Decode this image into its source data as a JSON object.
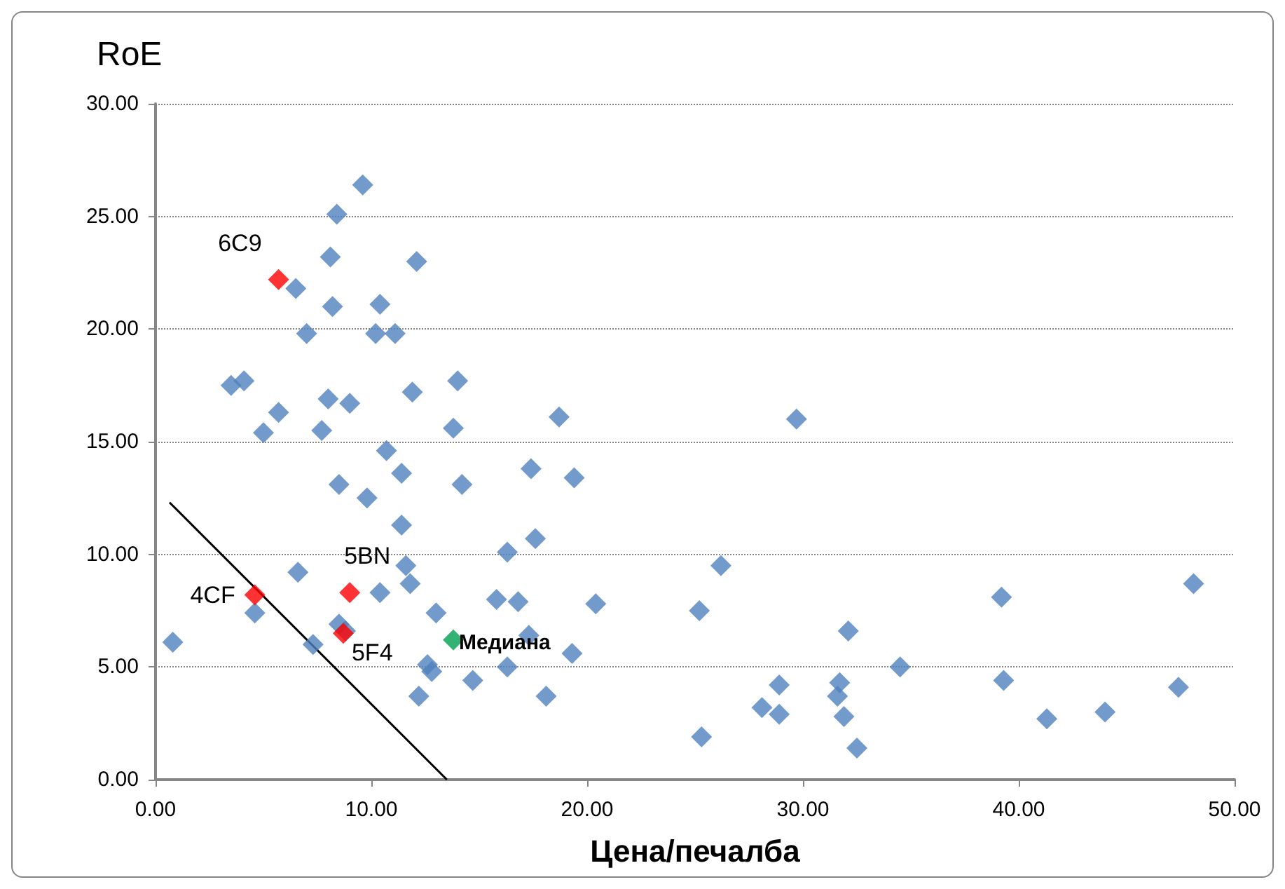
{
  "chart_data": {
    "type": "scatter",
    "xlabel": "Цена/печалба",
    "ylabel": "RoE",
    "xlim": [
      0,
      50
    ],
    "ylim": [
      0,
      30
    ],
    "xticks": [
      {
        "value": 0,
        "label": "0.00"
      },
      {
        "value": 10,
        "label": "10.00"
      },
      {
        "value": 20,
        "label": "20.00"
      },
      {
        "value": 30,
        "label": "30.00"
      },
      {
        "value": 40,
        "label": "40.00"
      },
      {
        "value": 50,
        "label": "50.00"
      }
    ],
    "yticks": [
      {
        "value": 0,
        "label": "0.00"
      },
      {
        "value": 5,
        "label": "5.00"
      },
      {
        "value": 10,
        "label": "10.00"
      },
      {
        "value": 15,
        "label": "15.00"
      },
      {
        "value": 20,
        "label": "20.00"
      },
      {
        "value": 25,
        "label": "25.00"
      },
      {
        "value": 30,
        "label": "30.00"
      }
    ],
    "grid": "y",
    "marker": "diamond",
    "series": [
      {
        "color": "#4f81bd",
        "x": [
          0.8,
          3.5,
          4.1,
          4.6,
          5.0,
          5.7,
          6.5,
          6.6,
          7.0,
          7.3,
          7.7,
          8.0,
          8.1,
          8.2,
          8.4,
          8.5,
          8.5,
          8.8,
          9.0,
          9.6,
          9.8,
          10.2,
          10.4,
          10.4,
          10.7,
          11.1,
          11.4,
          11.4,
          11.6,
          11.8,
          11.9,
          12.1,
          12.2,
          12.6,
          12.8,
          13.0,
          13.8,
          14.0,
          14.2,
          14.7,
          15.8,
          16.3,
          16.3,
          16.8,
          17.3,
          17.4,
          17.6,
          18.1,
          18.7,
          19.3,
          19.4,
          20.4,
          25.3,
          25.2,
          26.2,
          28.1,
          28.9,
          28.9,
          29.7,
          31.6,
          31.7,
          31.9,
          32.1,
          32.5,
          34.5,
          39.2,
          39.3,
          41.3,
          44.0,
          47.4,
          48.1
        ],
        "values": [
          6.1,
          17.5,
          17.7,
          7.4,
          15.4,
          16.3,
          21.8,
          9.2,
          19.8,
          6.0,
          15.5,
          16.9,
          23.2,
          21.0,
          25.1,
          13.1,
          6.9,
          6.6,
          16.7,
          26.4,
          12.5,
          19.8,
          21.1,
          8.3,
          14.6,
          19.8,
          13.6,
          11.3,
          9.5,
          8.7,
          17.2,
          23.0,
          3.7,
          5.1,
          4.8,
          7.4,
          15.6,
          17.7,
          13.1,
          4.4,
          8.0,
          10.1,
          5.0,
          7.9,
          6.4,
          13.8,
          10.7,
          3.7,
          16.1,
          5.6,
          13.4,
          7.8,
          1.9,
          7.5,
          9.5,
          3.2,
          4.2,
          2.9,
          16.0,
          3.7,
          4.3,
          2.8,
          6.6,
          1.4,
          5.0,
          8.1,
          4.4,
          2.7,
          3.0,
          4.1,
          8.7
        ]
      },
      {
        "color": "#ff0000",
        "x": [
          5.7,
          4.6,
          9.0,
          8.7
        ],
        "values": [
          22.2,
          8.2,
          8.3,
          6.5
        ]
      },
      {
        "color": "#00a050",
        "x": [
          13.8
        ],
        "values": [
          6.2
        ]
      },
      {
        "type": "line",
        "color": "#000000",
        "marker": "none",
        "x": [
          0.65,
          13.5
        ],
        "values": [
          12.3,
          0
        ]
      }
    ],
    "annotations": [
      {
        "text": "6C9",
        "x": 5.7,
        "y": 22.2
      },
      {
        "text": "4CF",
        "x": 4.6,
        "y": 8.2
      },
      {
        "text": "5BN",
        "x": 9.0,
        "y": 8.3
      },
      {
        "text": "5F4",
        "x": 8.7,
        "y": 6.5
      },
      {
        "text": "Медиана",
        "x": 13.8,
        "y": 6.2
      }
    ]
  }
}
